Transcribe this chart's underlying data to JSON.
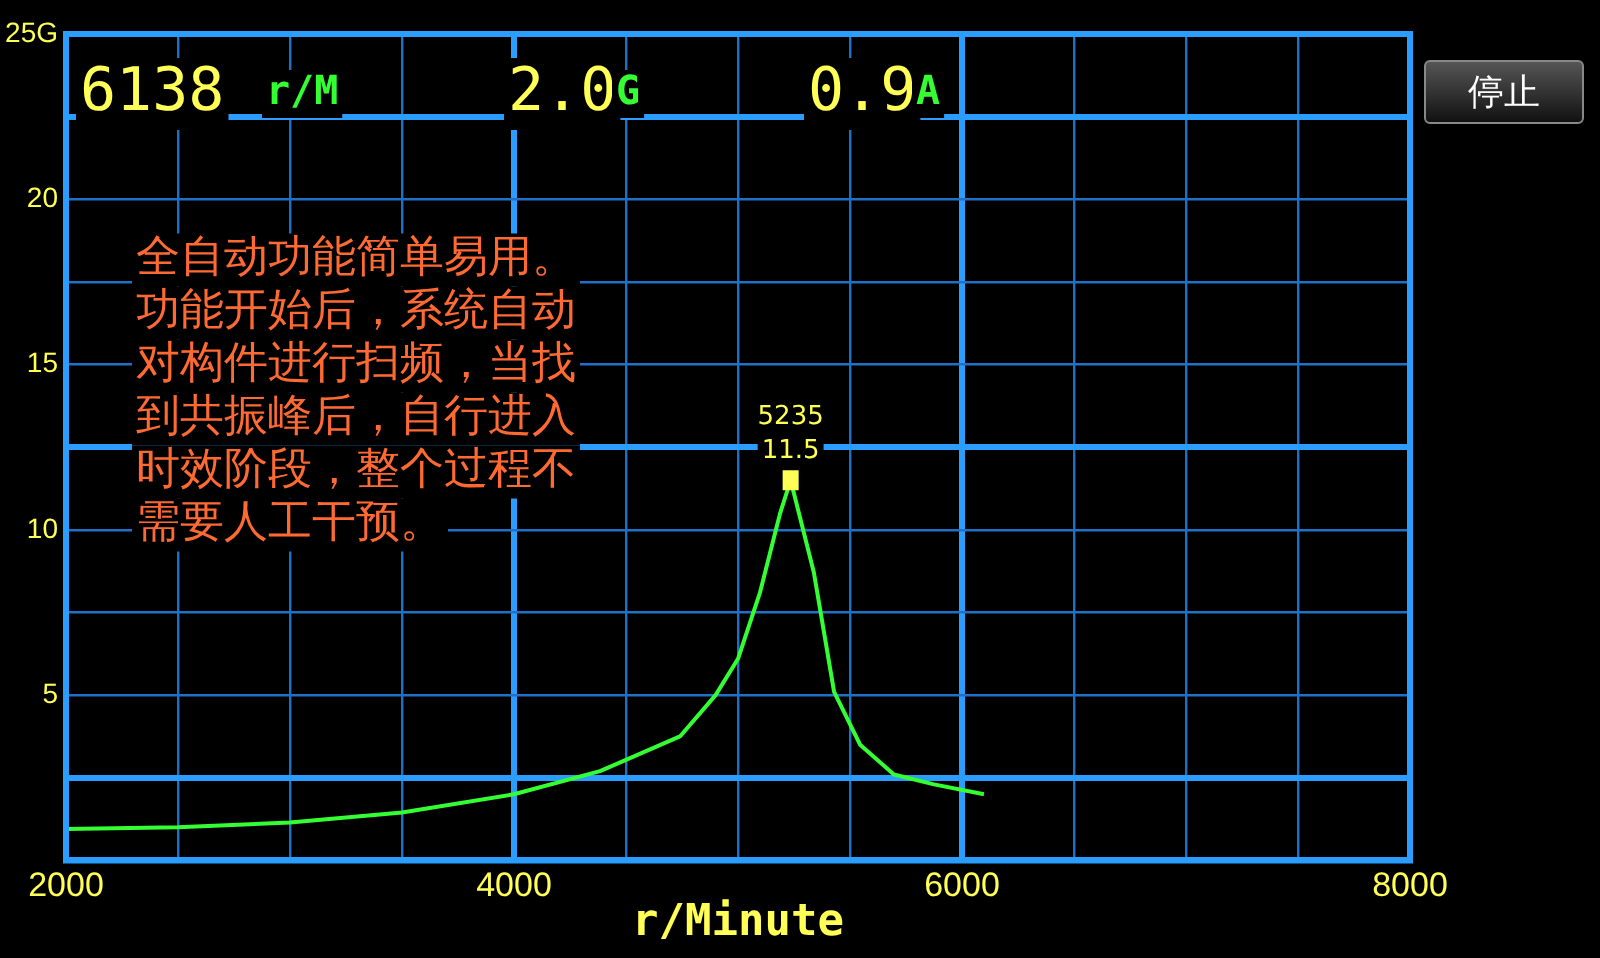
{
  "chart_data": {
    "type": "line",
    "xlabel": "r/Minute",
    "x": [
      2000,
      2500,
      3000,
      3500,
      4000,
      4384,
      4741,
      4900,
      5000,
      5098,
      5188,
      5235,
      5339,
      5429,
      5545,
      5696,
      5875,
      6098
    ],
    "series": [
      {
        "color": "#33ff33",
        "values": [
          0.95,
          1.0,
          1.15,
          1.45,
          2.0,
          2.7,
          3.75,
          5.0,
          6.1,
          8.1,
          10.5,
          11.5,
          8.7,
          5.1,
          3.5,
          2.6,
          2.3,
          2.0
        ]
      }
    ],
    "xlim": [
      2000,
      8000
    ],
    "xticks": [
      2000,
      {
        "value": 2500,
        "label": null
      },
      {
        "value": 3000,
        "label": null
      },
      {
        "value": 3500,
        "label": null
      },
      4000,
      {
        "value": 4500,
        "label": null
      },
      {
        "value": 5000,
        "label": null
      },
      {
        "value": 5500,
        "label": null
      },
      6000,
      {
        "value": 6500,
        "label": null
      },
      {
        "value": 7000,
        "label": null
      },
      {
        "value": 7500,
        "label": null
      },
      8000
    ],
    "ylim": [
      0,
      25
    ],
    "yticks": [
      {
        "value": 2.5,
        "label": null
      },
      5,
      {
        "value": 7.5,
        "label": null
      },
      10,
      {
        "value": 12.5,
        "label": null
      },
      15,
      {
        "value": 17.5,
        "label": null
      },
      20,
      {
        "value": 22.5,
        "label": null
      },
      {
        "value": 25,
        "label": "25G"
      }
    ],
    "grid": true,
    "marker": "none",
    "legend": false,
    "annotations": [
      {
        "text": "5235\n11.5",
        "x": 5235,
        "y": 11.5
      },
      "6138",
      "r/M",
      "2.0",
      "G",
      "0.9",
      "A",
      "全自动功能简单易用。",
      "功能开始后，系统自动",
      "对构件进行扫频，当找",
      "到共振峰后，自行进入",
      "时效阶段，整个过程不",
      "需要人工干预。",
      "停止"
    ]
  }
}
